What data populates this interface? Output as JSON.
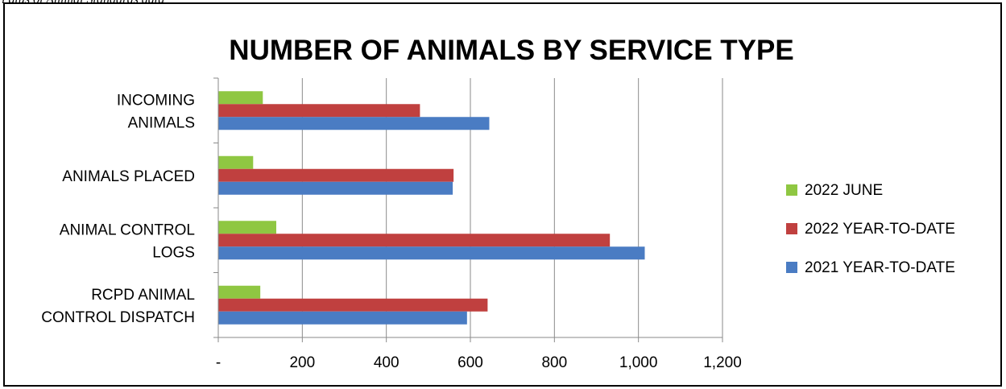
{
  "header_fragment": "i atus of Animal Standards data",
  "chart_data": {
    "type": "bar",
    "orientation": "horizontal",
    "title": "NUMBER OF ANIMALS BY SERVICE TYPE",
    "categories": [
      [
        "INCOMING",
        "ANIMALS"
      ],
      [
        "ANIMALS PLACED"
      ],
      [
        "ANIMAL CONTROL",
        "LOGS"
      ],
      [
        "RCPD ANIMAL",
        "CONTROL DISPATCH"
      ]
    ],
    "series": [
      {
        "name": "2022 JUNE",
        "color": "#8fc742",
        "values": [
          106,
          83,
          138,
          100
        ]
      },
      {
        "name": "2022 YEAR-TO-DATE",
        "color": "#c0403f",
        "values": [
          480,
          560,
          932,
          641
        ]
      },
      {
        "name": "2021 YEAR-TO-DATE",
        "color": "#4a7cc3",
        "values": [
          645,
          558,
          1015,
          592
        ]
      }
    ],
    "xlim": [
      0,
      1200
    ],
    "xticks": [
      0,
      200,
      400,
      600,
      800,
      1000,
      1200
    ],
    "xtick_labels": [
      "-",
      "200",
      "400",
      "600",
      "800",
      "1,000",
      "1,200"
    ],
    "grid": true,
    "legend_position": "right"
  }
}
